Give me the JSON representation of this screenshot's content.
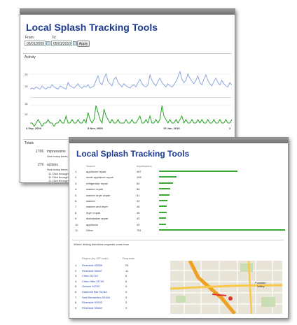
{
  "back_window": {
    "title": "Local Splash Tracking Tools",
    "from_label": "From:",
    "from_value": "05/01/2009",
    "to_label": "To:",
    "to_value": "05/01/2010",
    "apply_label": "Apply",
    "activity_label": "Activity",
    "totals_label": "Totals",
    "chart1_ticks": [
      "25",
      "15"
    ],
    "chart2_ticks": [
      "16",
      "10"
    ],
    "x_axis_labels": [
      "4 Sep, 2009",
      "8 Nov, 2009",
      "15 Jan, 2010",
      "2"
    ],
    "impressions_count": "1706",
    "impressions_label": "impressions",
    "actions_count": "276",
    "actions_label": "actions",
    "how_many_1": "How many times",
    "how_many_2": "How many times",
    "sub_rows": [
      "11   Click throughs",
      "11   Click throughs",
      "11   Click throughs"
    ]
  },
  "chart_data": [
    {
      "type": "line",
      "title": "",
      "series": [
        {
          "name": "",
          "values": [
            6,
            7,
            6,
            8,
            7,
            6,
            9,
            7,
            6,
            8,
            7,
            10,
            8,
            7,
            6,
            9,
            8,
            7,
            6,
            12,
            9,
            8,
            7,
            9,
            11,
            8,
            7,
            9,
            8,
            10,
            7,
            8,
            9,
            14,
            18,
            12,
            10,
            16,
            20,
            13,
            11,
            9,
            15,
            17,
            12,
            10,
            8,
            11,
            9,
            8,
            7,
            9,
            10,
            8,
            12,
            15,
            11,
            9,
            8,
            10,
            19,
            14,
            11,
            9,
            13,
            16,
            12,
            10,
            8,
            11,
            9,
            8,
            10,
            13,
            17,
            22,
            15,
            12,
            14,
            20,
            16,
            13,
            11,
            14,
            18,
            12,
            10,
            15,
            19,
            14,
            11,
            9,
            13,
            16,
            12,
            10,
            14,
            11,
            9,
            8,
            12,
            10
          ]
        }
      ],
      "yticks": [
        "25",
        "15"
      ],
      "color": "#8ea8dc"
    },
    {
      "type": "line",
      "title": "",
      "series": [
        {
          "name": "",
          "values": [
            1,
            1,
            0,
            1,
            2,
            1,
            0,
            1,
            1,
            2,
            1,
            1,
            0,
            1,
            1,
            2,
            1,
            1,
            3,
            1,
            1,
            2,
            1,
            1,
            2,
            1,
            1,
            2,
            1,
            4,
            2,
            1,
            2,
            6,
            4,
            2,
            1,
            5,
            3,
            2,
            1,
            2,
            1,
            1,
            2,
            1,
            1,
            1,
            2,
            1,
            1,
            2,
            1,
            1,
            2,
            3,
            1,
            1,
            2,
            1,
            3,
            1,
            1,
            2,
            1,
            2,
            6,
            3,
            2,
            1,
            2,
            1,
            1,
            2,
            1,
            2,
            3,
            1,
            2,
            1,
            1,
            2,
            1,
            1,
            2,
            1,
            2,
            1,
            1,
            2,
            1,
            1,
            2,
            1,
            1,
            2,
            1,
            1,
            2,
            1,
            1,
            2
          ]
        }
      ],
      "yticks": [
        "16",
        "10"
      ],
      "color": "#2aa329"
    },
    {
      "type": "bar",
      "title": "",
      "categories": [
        "appliance repair",
        "small appliance repair",
        "refrigerator repair",
        "washer repair",
        "washer dryer repair",
        "washer",
        "washer and dryer",
        "dryer repair",
        "dishwasher repair",
        "appliance",
        "Other"
      ],
      "values": [
        467,
        105,
        84,
        66,
        61,
        49,
        46,
        46,
        42,
        40,
        751
      ],
      "color": "#3aa832"
    }
  ],
  "front_window": {
    "title": "Local Splash Tracking Tools",
    "col_search": "Search",
    "col_impressions": "Impressions",
    "keywords": [
      {
        "rank": "1.",
        "term": "appliance repair",
        "count": "467"
      },
      {
        "rank": "2.",
        "term": "small appliance repair",
        "count": "105"
      },
      {
        "rank": "3.",
        "term": "refrigerator repair",
        "count": "84"
      },
      {
        "rank": "4.",
        "term": "washer repair",
        "count": "66"
      },
      {
        "rank": "5.",
        "term": "washer dryer repair",
        "count": "61"
      },
      {
        "rank": "6.",
        "term": "washer",
        "count": "49"
      },
      {
        "rank": "7.",
        "term": "washer and dryer",
        "count": "46"
      },
      {
        "rank": "8.",
        "term": "dryer repair",
        "count": "46"
      },
      {
        "rank": "9.",
        "term": "dishwasher repair",
        "count": "42"
      },
      {
        "rank": "10.",
        "term": "appliance",
        "count": "40"
      },
      {
        "rank": "11.",
        "term": "Other",
        "count": "751"
      }
    ],
    "directions_heading": "Where driving directions requests come from",
    "col_region": "Region (by ZIP code)",
    "col_requests": "Requests",
    "regions": [
      {
        "rank": "1.",
        "name": "Riverside 92506",
        "count": "24"
      },
      {
        "rank": "2.",
        "name": "Riverside 92507",
        "count": "11"
      },
      {
        "rank": "3.",
        "name": "Chino 91710",
        "count": "8"
      },
      {
        "rank": "4.",
        "name": "Chino Hills 91709",
        "count": "6"
      },
      {
        "rank": "5.",
        "name": "Ontario 91762",
        "count": "4"
      },
      {
        "rank": "6.",
        "name": "Diamond Bar 91765",
        "count": "4"
      },
      {
        "rank": "7.",
        "name": "San Bernardino 92404",
        "count": "3"
      },
      {
        "rank": "8.",
        "name": "Riverside 92503",
        "count": "3"
      },
      {
        "rank": "9.",
        "name": "Riverside 92504",
        "count": "3"
      }
    ],
    "map_label_1": "Fountain",
    "map_label_2": "Valley"
  }
}
